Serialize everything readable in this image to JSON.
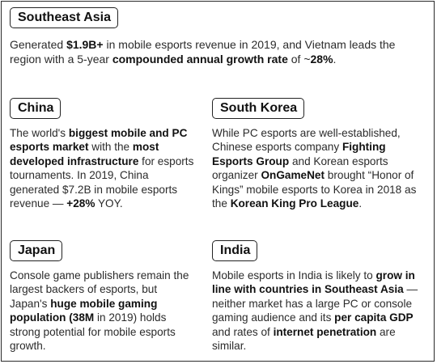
{
  "sections": {
    "southeast_asia": {
      "label": "Southeast Asia",
      "p1": "Generated ",
      "b1": "$1.9B+",
      "p2": " in mobile esports revenue in 2019, and Vietnam leads the region with a 5-year ",
      "b2": "compounded annual growth rate",
      "p3": " of ~",
      "b3": "28%",
      "p4": "."
    },
    "china": {
      "label": "China",
      "p1": "The world's ",
      "b1": "biggest mobile and PC esports market",
      "p2": " with the ",
      "b2": "most developed infrastructure",
      "p3": " for esports tournaments. In 2019, China generated $7.2B in mobile esports revenue — ",
      "b3": "+28%",
      "p4": " YOY."
    },
    "south_korea": {
      "label": "South Korea",
      "p1": "While PC esports are well-established, Chinese esports company ",
      "b1": "Fighting Esports Group",
      "p2": " and Korean esports organizer ",
      "b2": "OnGameNet",
      "p3": " brought “Honor of Kings” mobile esports to Korea in 2018 as the ",
      "b3": "Korean King Pro League",
      "p4": "."
    },
    "japan": {
      "label": "Japan",
      "p1": "Console game publishers remain the largest backers of esports, but Japan's ",
      "b1": "huge mobile gaming population",
      "p2": " ",
      "b2": "(38M",
      "p3": " in 2019) holds strong potential for mobile esports growth.",
      "b3": "",
      "p4": ""
    },
    "india": {
      "label": "India",
      "p1": "Mobile esports in India is likely to ",
      "b1": "grow in line with countries in Southeast Asia",
      "p2": " — neither market has a large PC or console gaming audience and its ",
      "b2": "per capita GDP",
      "p3": " and rates of ",
      "b3": "internet penetration",
      "p4": " are similar."
    }
  }
}
